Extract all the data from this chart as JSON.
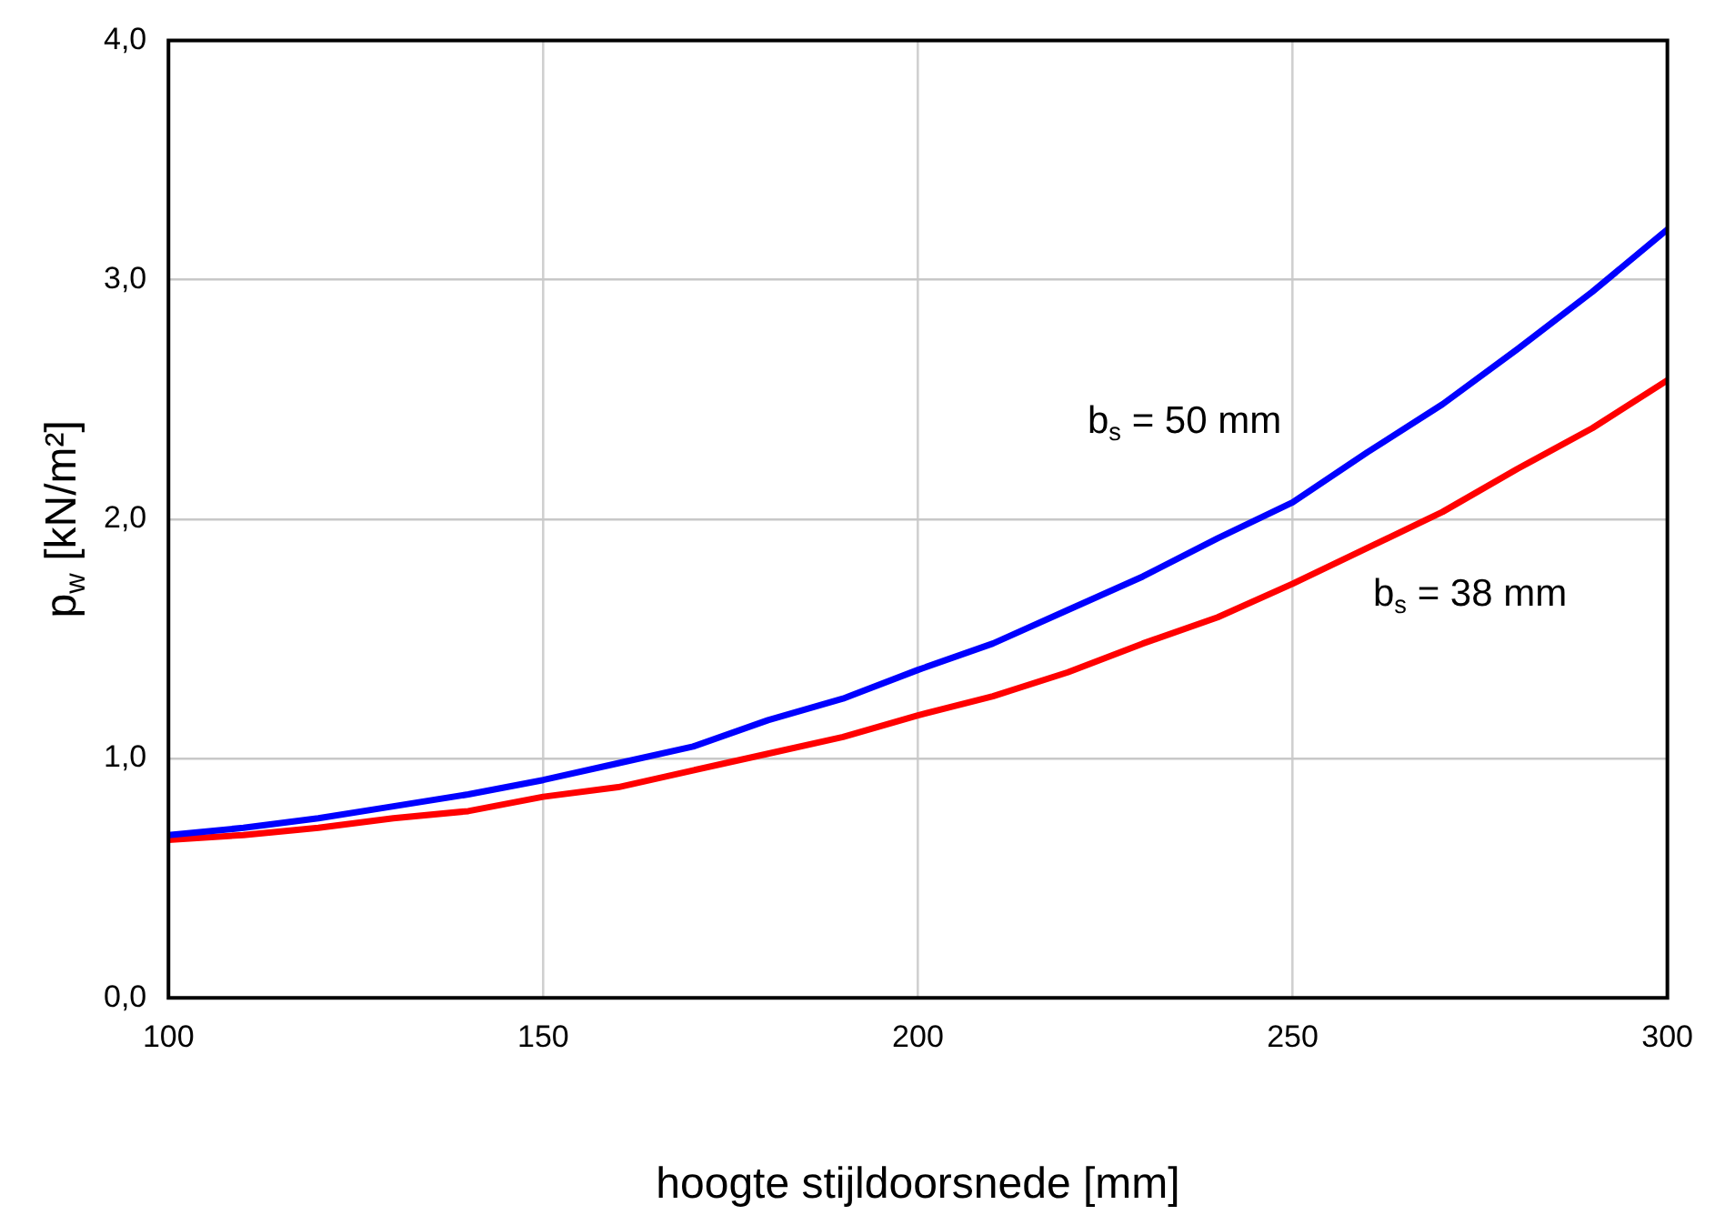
{
  "chart_data": {
    "type": "line",
    "xlabel": "hoogte stijldoorsnede [mm]",
    "ylabel": "p$_{w}$ [kN/m²]",
    "x": [
      100,
      110,
      120,
      130,
      140,
      150,
      160,
      170,
      180,
      190,
      200,
      210,
      220,
      230,
      240,
      250,
      260,
      270,
      280,
      290,
      300
    ],
    "series": [
      {
        "color": "#0000ff",
        "values": [
          0.68,
          0.71,
          0.75,
          0.8,
          0.85,
          0.91,
          0.98,
          1.05,
          1.16,
          1.25,
          1.37,
          1.48,
          1.62,
          1.76,
          1.92,
          2.07,
          2.28,
          2.48,
          2.71,
          2.95,
          3.21
        ]
      },
      {
        "color": "#ff0000",
        "values": [
          0.66,
          0.68,
          0.71,
          0.75,
          0.78,
          0.84,
          0.88,
          0.95,
          1.02,
          1.09,
          1.18,
          1.26,
          1.36,
          1.48,
          1.59,
          1.73,
          1.88,
          2.03,
          2.21,
          2.38,
          2.58
        ]
      }
    ],
    "annotations": [
      "b$_{s}$ = 50 mm",
      "b$_{s}$ = 38 mm"
    ],
    "xlim": [
      100,
      300
    ],
    "xticks": [
      100,
      150,
      200,
      250,
      300
    ],
    "ylim": [
      0,
      4
    ],
    "yticks": [
      {
        "value": 0,
        "label": "0,0"
      },
      {
        "value": 1,
        "label": "1,0"
      },
      {
        "value": 2,
        "label": "2,0"
      },
      {
        "value": 3,
        "label": "3,0"
      },
      {
        "value": 4,
        "label": "4,0"
      }
    ],
    "grid": true,
    "legend": false,
    "marker": "none",
    "line_style": "solid"
  }
}
